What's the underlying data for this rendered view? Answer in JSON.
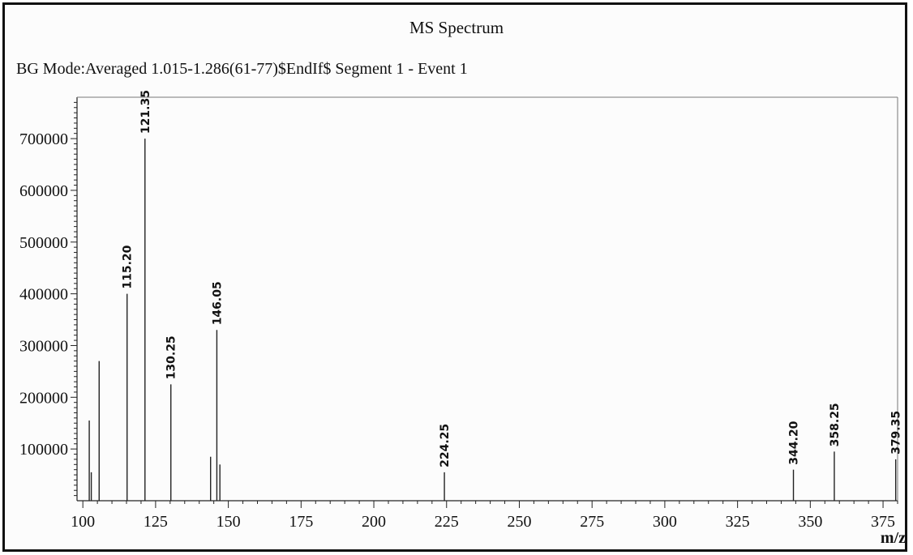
{
  "chart_data": {
    "type": "bar",
    "title": "MS Spectrum",
    "subtitle": "BG Mode:Averaged 1.015-1.286(61-77)$EndIf$ Segment 1 - Event 1",
    "xlabel": "m/z",
    "ylabel": "",
    "xlim": [
      98,
      380
    ],
    "ylim": [
      0,
      780000
    ],
    "x_ticks": [
      100,
      125,
      150,
      175,
      200,
      225,
      250,
      275,
      300,
      325,
      350,
      375
    ],
    "y_ticks": [
      100000,
      200000,
      300000,
      400000,
      500000,
      600000,
      700000
    ],
    "grid": false,
    "peaks": [
      {
        "x": 102.2,
        "y": 155000,
        "label": ""
      },
      {
        "x": 102.9,
        "y": 55000,
        "label": ""
      },
      {
        "x": 105.6,
        "y": 270000,
        "label": ""
      },
      {
        "x": 115.2,
        "y": 400000,
        "label": "115.20"
      },
      {
        "x": 121.35,
        "y": 700000,
        "label": "121.35"
      },
      {
        "x": 130.25,
        "y": 225000,
        "label": "130.25"
      },
      {
        "x": 143.9,
        "y": 85000,
        "label": ""
      },
      {
        "x": 146.05,
        "y": 330000,
        "label": "146.05"
      },
      {
        "x": 147.1,
        "y": 70000,
        "label": ""
      },
      {
        "x": 224.25,
        "y": 55000,
        "label": "224.25"
      },
      {
        "x": 344.2,
        "y": 60000,
        "label": "344.20"
      },
      {
        "x": 358.25,
        "y": 95000,
        "label": "358.25"
      },
      {
        "x": 379.35,
        "y": 80000,
        "label": "379.35"
      }
    ]
  }
}
